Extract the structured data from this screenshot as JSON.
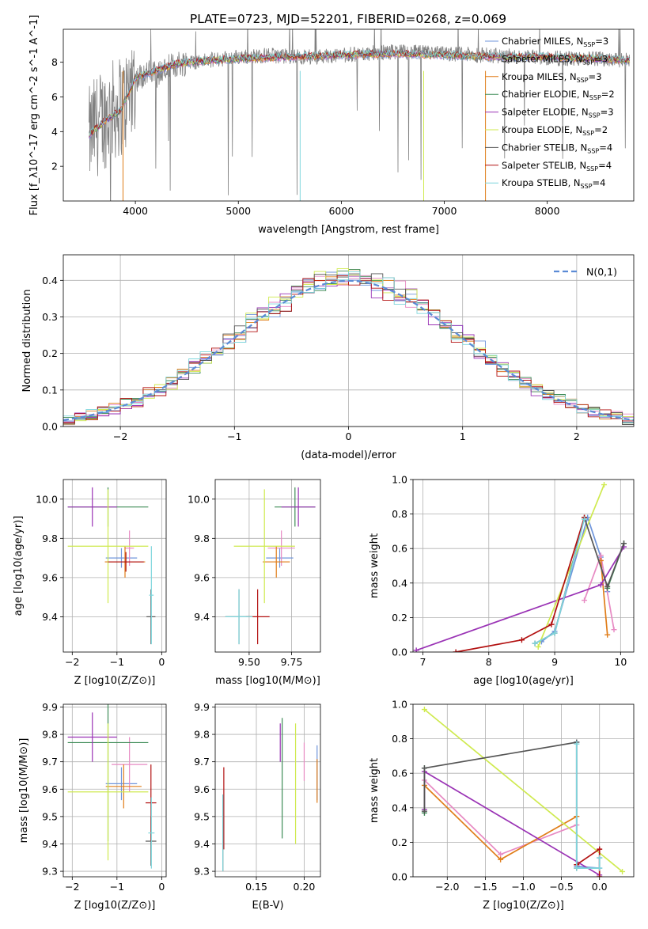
{
  "title": "PLATE=0723, MJD=52201, FIBERID=0268, z=0.069",
  "colors": {
    "Chabrier MILES": "#6f95db",
    "Salpeter MILES": "#e78ac3",
    "Kroupa MILES": "#e07d19",
    "Chabrier ELODIE": "#3e8c57",
    "Salpeter ELODIE": "#9a33b5",
    "Kroupa ELODIE": "#cfea4f",
    "Chabrier STELIB": "#555555",
    "Salpeter STELIB": "#b21010",
    "Kroupa STELIB": "#7fd6dc",
    "data": "#808080",
    "normal": "#5b8bd5"
  },
  "chart_data": [
    {
      "id": "spectrum",
      "type": "line",
      "xlabel": "wavelength [Angstrom, rest frame]",
      "ylabel": "Flux [f_λ10^-17 erg cm^-2 s^-1 A^-1]",
      "xlim": [
        3300,
        8840
      ],
      "ylim": [
        0,
        9.9
      ],
      "xticks": [
        4000,
        5000,
        6000,
        7000,
        8000
      ],
      "yticks": [
        2,
        4,
        6,
        8
      ],
      "legend_position": "right",
      "legend": [
        {
          "name": "Chabrier MILES",
          "nssp": "3"
        },
        {
          "name": "Salpeter MILES",
          "nssp": "3"
        },
        {
          "name": "Kroupa MILES",
          "nssp": "3"
        },
        {
          "name": "Chabrier ELODIE",
          "nssp": "2"
        },
        {
          "name": "Salpeter ELODIE",
          "nssp": "3"
        },
        {
          "name": "Kroupa ELODIE",
          "nssp": "2"
        },
        {
          "name": "Chabrier STELIB",
          "nssp": "4"
        },
        {
          "name": "Salpeter STELIB",
          "nssp": "4"
        },
        {
          "name": "Kroupa STELIB",
          "nssp": "4"
        }
      ],
      "data_curve": [
        [
          3550,
          3.6
        ],
        [
          3600,
          4.2
        ],
        [
          3700,
          4.8
        ],
        [
          3800,
          5.3
        ],
        [
          3900,
          5.6
        ],
        [
          3950,
          6.6
        ],
        [
          4000,
          7.0
        ],
        [
          4100,
          7.4
        ],
        [
          4200,
          7.3
        ],
        [
          4300,
          7.6
        ],
        [
          4400,
          7.9
        ],
        [
          4500,
          8.0
        ],
        [
          4700,
          8.1
        ],
        [
          5000,
          8.3
        ],
        [
          5300,
          8.4
        ],
        [
          5600,
          8.3
        ],
        [
          6000,
          8.4
        ],
        [
          6500,
          8.6
        ],
        [
          7000,
          8.5
        ],
        [
          7400,
          8.4
        ],
        [
          7800,
          8.3
        ],
        [
          8200,
          8.2
        ],
        [
          8600,
          8.2
        ],
        [
          8800,
          8.1
        ]
      ],
      "model_curve": [
        [
          3550,
          3.8
        ],
        [
          3700,
          4.6
        ],
        [
          3850,
          5.2
        ],
        [
          3950,
          6.4
        ],
        [
          4000,
          7.1
        ],
        [
          4200,
          7.5
        ],
        [
          4400,
          7.9
        ],
        [
          4700,
          8.1
        ],
        [
          5000,
          8.2
        ],
        [
          5500,
          8.3
        ],
        [
          6000,
          8.4
        ],
        [
          6500,
          8.5
        ],
        [
          7000,
          8.4
        ],
        [
          7500,
          8.3
        ],
        [
          8000,
          8.3
        ],
        [
          8500,
          8.2
        ],
        [
          8800,
          8.1
        ]
      ]
    },
    {
      "id": "residuals",
      "type": "histogram",
      "xlabel": "(data-model)/error",
      "ylabel": "Normed distribution",
      "xlim": [
        -2.5,
        2.5
      ],
      "ylim": [
        0,
        0.47
      ],
      "xticks": [
        -2,
        -1,
        0,
        1,
        2
      ],
      "yticks": [
        0.0,
        0.1,
        0.2,
        0.3,
        0.4
      ],
      "grid": true,
      "legend_position": "top-right",
      "legend_label": "N(0,1)",
      "bin_width": 0.1
    },
    {
      "id": "age-vs-Z",
      "type": "scatter",
      "xlabel": "Z [log10(Z/Z⊙)]",
      "ylabel": "age  [log10(age/yr)]",
      "xlim": [
        -2.2,
        0.1
      ],
      "ylim": [
        9.22,
        10.1
      ],
      "xticks": [
        -2,
        -1,
        0
      ],
      "yticks": [
        9.4,
        9.6,
        9.8,
        10.0
      ],
      "grid": true,
      "points": [
        {
          "m": "Chabrier MILES",
          "x": -0.9,
          "y": 9.7,
          "xerr": 0.35,
          "yerr": 0.05
        },
        {
          "m": "Salpeter MILES",
          "x": -0.72,
          "y": 9.75,
          "xerr": 0.1,
          "yerr": 0.09
        },
        {
          "m": "Kroupa MILES",
          "x": -0.82,
          "y": 9.68,
          "xerr": 0.45,
          "yerr": 0.08
        },
        {
          "m": "Chabrier ELODIE",
          "x": -1.2,
          "y": 9.96,
          "xerr": 0.9,
          "yerr": 0.1
        },
        {
          "m": "Salpeter ELODIE",
          "x": -1.55,
          "y": 9.96,
          "xerr": 0.55,
          "yerr": 0.1
        },
        {
          "m": "Kroupa ELODIE",
          "x": -1.2,
          "y": 9.76,
          "xerr": 0.9,
          "yerr": 0.29
        },
        {
          "m": "Chabrier STELIB",
          "x": -0.24,
          "y": 9.4,
          "xerr": 0.1,
          "yerr": 0.14
        },
        {
          "m": "Salpeter STELIB",
          "x": -0.8,
          "y": 9.68,
          "xerr": 0.4,
          "yerr": 0.05
        },
        {
          "m": "Kroupa STELIB",
          "x": -0.23,
          "y": 9.51,
          "xerr": 0.05,
          "yerr": 0.25
        }
      ]
    },
    {
      "id": "age-vs-mass",
      "type": "scatter",
      "xlabel": "mass [log10(M/M⊙)]",
      "ylabel": "",
      "xlim": [
        9.3,
        9.92
      ],
      "ylim": [
        9.22,
        10.1
      ],
      "xticks": [
        9.5,
        9.75
      ],
      "yticks": [
        9.4,
        9.6,
        9.8,
        10.0
      ],
      "grid": true,
      "points": [
        {
          "m": "Chabrier MILES",
          "x": 9.68,
          "y": 9.7,
          "xerr": 0.08,
          "yerr": 0.05
        },
        {
          "m": "Salpeter MILES",
          "x": 9.69,
          "y": 9.75,
          "xerr": 0.08,
          "yerr": 0.09
        },
        {
          "m": "Kroupa MILES",
          "x": 9.66,
          "y": 9.68,
          "xerr": 0.08,
          "yerr": 0.08
        },
        {
          "m": "Chabrier ELODIE",
          "x": 9.77,
          "y": 9.96,
          "xerr": 0.12,
          "yerr": 0.1
        },
        {
          "m": "Salpeter ELODIE",
          "x": 9.79,
          "y": 9.96,
          "xerr": 0.1,
          "yerr": 0.1
        },
        {
          "m": "Kroupa ELODIE",
          "x": 9.59,
          "y": 9.76,
          "xerr": 0.18,
          "yerr": 0.29
        },
        {
          "m": "Chabrier STELIB",
          "x": 9.44,
          "y": 9.4,
          "xerr": 0.08,
          "yerr": 0.14
        },
        {
          "m": "Salpeter STELIB",
          "x": 9.55,
          "y": 9.4,
          "xerr": 0.07,
          "yerr": 0.14
        },
        {
          "m": "Kroupa STELIB",
          "x": 9.44,
          "y": 9.4,
          "xerr": 0.08,
          "yerr": 0.14
        }
      ]
    },
    {
      "id": "mass-weight-vs-age",
      "type": "line",
      "xlabel": "age  [log10(age/yr)]",
      "ylabel": "mass weight",
      "xlim": [
        6.85,
        10.2
      ],
      "ylim": [
        0,
        1.0
      ],
      "xticks": [
        7,
        8,
        9,
        10
      ],
      "yticks": [
        0.0,
        0.2,
        0.4,
        0.6,
        0.8,
        1.0
      ],
      "grid": true,
      "series": [
        {
          "m": "Chabrier MILES",
          "pts": [
            [
              8.8,
              0.06
            ],
            [
              9.0,
              0.12
            ],
            [
              9.5,
              0.78
            ],
            [
              9.7,
              0.55
            ],
            [
              9.8,
              0.35
            ]
          ]
        },
        {
          "m": "Salpeter MILES",
          "pts": [
            [
              9.45,
              0.3
            ],
            [
              9.7,
              0.56
            ],
            [
              9.9,
              0.13
            ]
          ]
        },
        {
          "m": "Kroupa MILES",
          "pts": [
            [
              9.7,
              0.53
            ],
            [
              9.8,
              0.1
            ]
          ]
        },
        {
          "m": "Chabrier ELODIE",
          "pts": [
            [
              9.8,
              0.37
            ],
            [
              10.05,
              0.63
            ]
          ]
        },
        {
          "m": "Salpeter ELODIE",
          "pts": [
            [
              6.9,
              0.01
            ],
            [
              9.7,
              0.39
            ],
            [
              10.05,
              0.61
            ]
          ]
        },
        {
          "m": "Kroupa ELODIE",
          "pts": [
            [
              8.75,
              0.03
            ],
            [
              9.75,
              0.97
            ]
          ]
        },
        {
          "m": "Chabrier STELIB",
          "pts": [
            [
              8.7,
              0.05
            ],
            [
              9.0,
              0.11
            ],
            [
              9.45,
              0.78
            ],
            [
              9.8,
              0.38
            ],
            [
              10.05,
              0.63
            ]
          ]
        },
        {
          "m": "Salpeter STELIB",
          "pts": [
            [
              7.5,
              0.0
            ],
            [
              8.5,
              0.07
            ],
            [
              8.95,
              0.16
            ],
            [
              9.45,
              0.78
            ]
          ]
        },
        {
          "m": "Kroupa STELIB",
          "pts": [
            [
              8.7,
              0.05
            ],
            [
              9.0,
              0.11
            ],
            [
              9.45,
              0.77
            ]
          ]
        }
      ]
    },
    {
      "id": "mass-vs-Z",
      "type": "scatter",
      "xlabel": "Z [log10(Z/Z⊙)]",
      "ylabel": "mass [log10(M/M⊙)]",
      "xlim": [
        -2.2,
        0.1
      ],
      "ylim": [
        9.28,
        9.91
      ],
      "xticks": [
        -2,
        -1,
        0
      ],
      "yticks": [
        9.3,
        9.4,
        9.5,
        9.6,
        9.7,
        9.8,
        9.9
      ],
      "grid": true,
      "points": [
        {
          "m": "Chabrier MILES",
          "x": -0.9,
          "y": 9.62,
          "xerr": 0.35,
          "yerr": 0.06
        },
        {
          "m": "Salpeter MILES",
          "x": -0.72,
          "y": 9.69,
          "xerr": 0.4,
          "yerr": 0.1
        },
        {
          "m": "Kroupa MILES",
          "x": -0.85,
          "y": 9.61,
          "xerr": 0.4,
          "yerr": 0.08
        },
        {
          "m": "Chabrier ELODIE",
          "x": -1.2,
          "y": 9.77,
          "xerr": 0.9,
          "yerr": 0.36
        },
        {
          "m": "Salpeter ELODIE",
          "x": -1.55,
          "y": 9.79,
          "xerr": 0.55,
          "yerr": 0.09
        },
        {
          "m": "Kroupa ELODIE",
          "x": -1.2,
          "y": 9.59,
          "xerr": 0.9,
          "yerr": 0.25
        },
        {
          "m": "Chabrier STELIB",
          "x": -0.24,
          "y": 9.41,
          "xerr": 0.12,
          "yerr": 0.09
        },
        {
          "m": "Salpeter STELIB",
          "x": -0.24,
          "y": 9.55,
          "xerr": 0.12,
          "yerr": 0.14
        },
        {
          "m": "Kroupa STELIB",
          "x": -0.23,
          "y": 9.44,
          "xerr": 0.07,
          "yerr": 0.13
        }
      ]
    },
    {
      "id": "mass-vs-EBV",
      "type": "scatter",
      "xlabel": "E(B-V)",
      "ylabel": "",
      "xlim": [
        0.107,
        0.217
      ],
      "ylim": [
        9.28,
        9.91
      ],
      "xticks": [
        0.15,
        0.2
      ],
      "yticks": [
        9.3,
        9.4,
        9.5,
        9.6,
        9.7,
        9.8,
        9.9
      ],
      "grid": true,
      "points": [
        {
          "m": "Chabrier MILES",
          "x": 0.2135,
          "y": 9.66,
          "xerr": 0,
          "yerr": 0.1
        },
        {
          "m": "Salpeter MILES",
          "x": 0.2,
          "y": 9.7,
          "xerr": 0,
          "yerr": 0.07
        },
        {
          "m": "Kroupa MILES",
          "x": 0.2135,
          "y": 9.63,
          "xerr": 0,
          "yerr": 0.08
        },
        {
          "m": "Chabrier ELODIE",
          "x": 0.177,
          "y": 9.64,
          "xerr": 0,
          "yerr": 0.22
        },
        {
          "m": "Salpeter ELODIE",
          "x": 0.175,
          "y": 9.77,
          "xerr": 0,
          "yerr": 0.07
        },
        {
          "m": "Kroupa ELODIE",
          "x": 0.191,
          "y": 9.62,
          "xerr": 0,
          "yerr": 0.22
        },
        {
          "m": "Chabrier STELIB",
          "x": 0.115,
          "y": 9.44,
          "xerr": 0,
          "yerr": 0.14
        },
        {
          "m": "Salpeter STELIB",
          "x": 0.116,
          "y": 9.53,
          "xerr": 0,
          "yerr": 0.15
        },
        {
          "m": "Kroupa STELIB",
          "x": 0.115,
          "y": 9.44,
          "xerr": 0,
          "yerr": 0.14
        }
      ]
    },
    {
      "id": "mass-weight-vs-Z",
      "type": "line",
      "xlabel": "Z [log10(Z/Z⊙)]",
      "ylabel": "mass weight",
      "xlim": [
        -2.45,
        0.45
      ],
      "ylim": [
        0,
        1.0
      ],
      "xticks": [
        -2.0,
        -1.5,
        -1.0,
        -0.5,
        0.0
      ],
      "yticks": [
        0.0,
        0.2,
        0.4,
        0.6,
        0.8,
        1.0
      ],
      "grid": true,
      "series": [
        {
          "m": "Chabrier MILES",
          "pts": [
            [
              -0.3,
              0.78
            ],
            [
              -0.3,
              0.06
            ],
            [
              0.0,
              0.05
            ],
            [
              0.0,
              0.11
            ]
          ]
        },
        {
          "m": "Salpeter MILES",
          "pts": [
            [
              -2.3,
              0.56
            ],
            [
              -1.3,
              0.13
            ],
            [
              -0.3,
              0.3
            ]
          ]
        },
        {
          "m": "Kroupa MILES",
          "pts": [
            [
              -2.3,
              0.53
            ],
            [
              -1.3,
              0.1
            ],
            [
              -0.3,
              0.35
            ]
          ]
        },
        {
          "m": "Chabrier ELODIE",
          "pts": [
            [
              -2.3,
              0.37
            ],
            [
              -2.3,
              0.63
            ]
          ]
        },
        {
          "m": "Salpeter ELODIE",
          "pts": [
            [
              -2.3,
              0.39
            ],
            [
              -2.3,
              0.61
            ],
            [
              0.0,
              0.01
            ]
          ]
        },
        {
          "m": "Kroupa ELODIE",
          "pts": [
            [
              -2.3,
              0.97
            ],
            [
              0.3,
              0.03
            ]
          ]
        },
        {
          "m": "Chabrier STELIB",
          "pts": [
            [
              -2.3,
              0.38
            ],
            [
              -2.3,
              0.63
            ],
            [
              -0.3,
              0.78
            ],
            [
              -0.3,
              0.05
            ]
          ]
        },
        {
          "m": "Salpeter STELIB",
          "pts": [
            [
              -0.3,
              0.07
            ],
            [
              0.0,
              0.16
            ],
            [
              0.0,
              0.0
            ]
          ]
        },
        {
          "m": "Kroupa STELIB",
          "pts": [
            [
              -0.3,
              0.77
            ],
            [
              -0.3,
              0.05
            ],
            [
              0.0,
              0.05
            ],
            [
              0.0,
              0.11
            ]
          ]
        }
      ]
    }
  ]
}
